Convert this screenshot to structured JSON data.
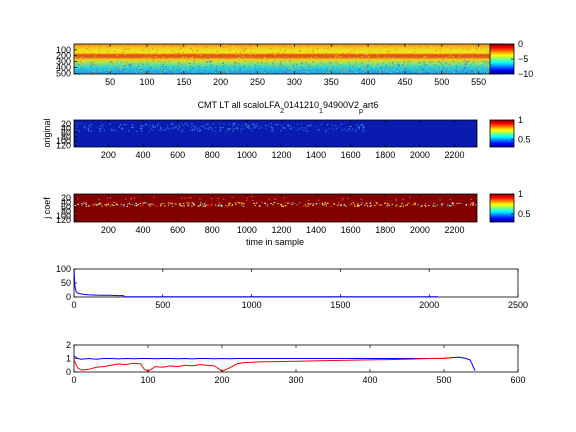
{
  "chart_data": [
    {
      "type": "heatmap",
      "xticks": [
        50,
        100,
        150,
        200,
        250,
        300,
        350,
        400,
        450,
        500,
        550
      ],
      "yticks": [
        100,
        200,
        300,
        400,
        500
      ],
      "xlim": [
        1,
        583
      ],
      "ylim": [
        1,
        510
      ],
      "colormap": "jet",
      "colorbar": {
        "ticks": [
          "0",
          "−5",
          "−10"
        ],
        "range": [
          -10,
          0
        ]
      },
      "xlabel": "",
      "ylabel": "",
      "title": ""
    },
    {
      "type": "heatmap",
      "title": "CMT LT all scaloLFA",
      "title_parts": [
        "CMT LT all scaloLFA",
        "2",
        "0141210",
        "1",
        "94900V2",
        "p",
        "art6"
      ],
      "ylabel": "original",
      "xticks": [
        200,
        400,
        600,
        800,
        1000,
        1200,
        1400,
        1600,
        1800,
        2000,
        2200
      ],
      "yticks": [
        20,
        40,
        60,
        80,
        100,
        120
      ],
      "xlim": [
        1,
        2330
      ],
      "ylim": [
        1,
        128
      ],
      "colormap": "jet",
      "colorbar": {
        "ticks": [
          "1",
          "0.5"
        ],
        "range": [
          0.3,
          1
        ]
      }
    },
    {
      "type": "heatmap",
      "ylabel": "j coef",
      "xlabel": "time in sample",
      "xticks": [
        200,
        400,
        600,
        800,
        1000,
        1200,
        1400,
        1600,
        1800,
        2000,
        2200
      ],
      "yticks": [
        20,
        40,
        60,
        80,
        100,
        120
      ],
      "xlim": [
        1,
        2330
      ],
      "ylim": [
        1,
        128
      ],
      "colormap": "jet",
      "colorbar": {
        "ticks": [
          "1",
          "0.5"
        ],
        "range": [
          0.3,
          1
        ]
      }
    },
    {
      "type": "line",
      "xticks": [
        0,
        500,
        1000,
        1500,
        2000,
        2500
      ],
      "yticks": [
        0,
        50,
        100
      ],
      "xlim": [
        0,
        2500
      ],
      "ylim": [
        0,
        100
      ],
      "series": [
        {
          "color": "#0000ff",
          "x": [
            0,
            5,
            10,
            20,
            30,
            40,
            50,
            60,
            80,
            100,
            150,
            200,
            250,
            280,
            282,
            300,
            500,
            1000,
            1500,
            2000,
            2050
          ],
          "y": [
            100,
            40,
            22,
            14,
            12,
            11,
            10,
            9,
            8,
            7,
            6,
            6,
            5,
            5,
            1,
            1,
            1,
            1,
            1,
            1,
            1
          ]
        }
      ]
    },
    {
      "type": "line",
      "xticks": [
        0,
        100,
        200,
        300,
        400,
        500,
        600
      ],
      "yticks": [
        0,
        1,
        2
      ],
      "xlim": [
        0,
        600
      ],
      "ylim": [
        0,
        2
      ],
      "series": [
        {
          "color": "#0000ff",
          "x": [
            0,
            5,
            10,
            20,
            30,
            40,
            50,
            60,
            70,
            80,
            90,
            100,
            110,
            120,
            130,
            140,
            150,
            160,
            170,
            180,
            190,
            200,
            210,
            220,
            230,
            250,
            300,
            350,
            400,
            450,
            480,
            500,
            520,
            530,
            535,
            538,
            540,
            542
          ],
          "y": [
            1.2,
            1.0,
            0.95,
            1.0,
            0.95,
            1.0,
            1.0,
            0.97,
            1.0,
            0.98,
            1.0,
            1.0,
            0.98,
            1.0,
            1.0,
            0.98,
            1.0,
            0.97,
            1.0,
            1.0,
            0.98,
            1.0,
            0.98,
            1.0,
            1.0,
            1.0,
            1.0,
            1.0,
            1.0,
            1.0,
            1.0,
            1.02,
            1.1,
            1.0,
            0.9,
            0.6,
            0.3,
            0.1
          ]
        },
        {
          "color": "#ff0000",
          "x": [
            0,
            5,
            10,
            20,
            30,
            40,
            50,
            60,
            70,
            80,
            90,
            95,
            100,
            110,
            120,
            130,
            140,
            150,
            160,
            170,
            180,
            190,
            200,
            210,
            220,
            230,
            250,
            300,
            350,
            400,
            450,
            480,
            500,
            510
          ],
          "y": [
            0.9,
            0.3,
            0.15,
            0.2,
            0.35,
            0.4,
            0.5,
            0.6,
            0.55,
            0.65,
            0.6,
            0.2,
            0.05,
            0.4,
            0.35,
            0.45,
            0.4,
            0.5,
            0.45,
            0.55,
            0.5,
            0.45,
            0.05,
            0.3,
            0.6,
            0.7,
            0.75,
            0.8,
            0.85,
            0.9,
            0.95,
            1.0,
            1.0,
            1.05
          ]
        }
      ]
    }
  ]
}
